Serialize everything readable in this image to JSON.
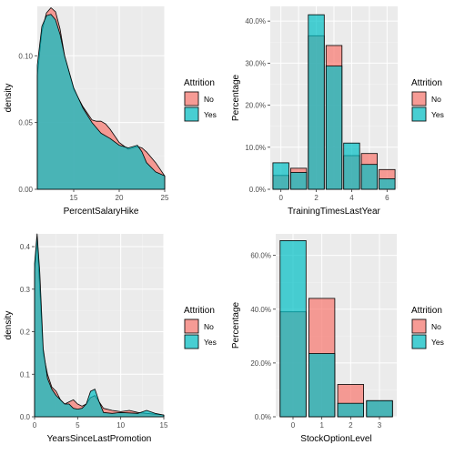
{
  "colors": {
    "no": "#F8766D",
    "yes": "#00BFC4",
    "panel": "#EBEBEB",
    "grid_major": "#FFFFFF",
    "grid_minor": "#F4F4F4"
  },
  "chart_data": [
    {
      "type": "area",
      "xlabel": "PercentSalaryHike",
      "ylabel": "density",
      "xlim": [
        11,
        25
      ],
      "ylim": [
        0,
        0.137
      ],
      "xticks": [
        15,
        20,
        25
      ],
      "xtick_labels": [
        "15",
        "20",
        "25"
      ],
      "yticks": [
        0,
        0.05,
        0.1
      ],
      "ytick_labels": [
        "0.00",
        "0.05",
        "0.10"
      ],
      "legend": {
        "title": "Attrition",
        "labels": [
          "No",
          "Yes"
        ],
        "position": "right"
      },
      "series": [
        {
          "name": "No",
          "x": [
            11,
            11.5,
            12,
            12.5,
            13,
            13.5,
            14,
            15,
            16,
            17,
            17.5,
            18,
            18.5,
            19,
            20,
            21,
            21.5,
            22,
            22.5,
            23,
            24,
            25
          ],
          "values": [
            0.085,
            0.118,
            0.132,
            0.136,
            0.133,
            0.12,
            0.1,
            0.075,
            0.062,
            0.052,
            0.051,
            0.051,
            0.049,
            0.045,
            0.035,
            0.03,
            0.031,
            0.032,
            0.031,
            0.028,
            0.02,
            0.01
          ]
        },
        {
          "name": "Yes",
          "x": [
            11,
            11.5,
            12,
            12.5,
            13,
            13.5,
            14,
            15,
            16,
            17,
            18,
            19,
            20,
            21,
            21.5,
            22,
            22.5,
            23,
            24,
            25
          ],
          "values": [
            0.093,
            0.122,
            0.13,
            0.131,
            0.127,
            0.116,
            0.1,
            0.076,
            0.061,
            0.05,
            0.042,
            0.038,
            0.033,
            0.031,
            0.032,
            0.033,
            0.028,
            0.02,
            0.013,
            0.01
          ]
        }
      ]
    },
    {
      "type": "bar",
      "xlabel": "TrainingTimesLastYear",
      "ylabel": "Percentage",
      "xlim": [
        -0.6,
        6.6
      ],
      "ylim": [
        0,
        0.435
      ],
      "categories": [
        0,
        1,
        2,
        3,
        4,
        5,
        6
      ],
      "xticks": [
        0,
        2,
        4,
        6
      ],
      "xtick_labels": [
        "0",
        "2",
        "4",
        "6"
      ],
      "yticks": [
        0,
        0.1,
        0.2,
        0.3,
        0.4
      ],
      "ytick_labels": [
        "0.0%",
        "10.0%",
        "20.0%",
        "30.0%",
        "40.0%"
      ],
      "legend": {
        "title": "Attrition",
        "labels": [
          "No",
          "Yes"
        ],
        "position": "right"
      },
      "series": [
        {
          "name": "No",
          "values": [
            0.033,
            0.05,
            0.365,
            0.342,
            0.08,
            0.085,
            0.047
          ]
        },
        {
          "name": "Yes",
          "values": [
            0.063,
            0.04,
            0.415,
            0.293,
            0.11,
            0.059,
            0.025
          ]
        }
      ]
    },
    {
      "type": "area",
      "xlabel": "YearsSinceLastPromotion",
      "ylabel": "density",
      "xlim": [
        0,
        15
      ],
      "ylim": [
        0,
        0.43
      ],
      "xticks": [
        0,
        5,
        10,
        15
      ],
      "xtick_labels": [
        "0",
        "5",
        "10",
        "15"
      ],
      "yticks": [
        0,
        0.1,
        0.2,
        0.3,
        0.4
      ],
      "ytick_labels": [
        "0.0",
        "0.1",
        "0.2",
        "0.3",
        "0.4"
      ],
      "legend": {
        "title": "Attrition",
        "labels": [
          "No",
          "Yes"
        ],
        "position": "right"
      },
      "series": [
        {
          "name": "No",
          "x": [
            0,
            0.3,
            0.6,
            1,
            1.5,
            2,
            2.5,
            3,
            3.5,
            4,
            4.5,
            5,
            5.5,
            6,
            6.5,
            7,
            7.5,
            8,
            9,
            10,
            11,
            12,
            13,
            14,
            15
          ],
          "values": [
            0.34,
            0.42,
            0.3,
            0.15,
            0.1,
            0.07,
            0.06,
            0.04,
            0.03,
            0.035,
            0.04,
            0.03,
            0.025,
            0.03,
            0.045,
            0.05,
            0.035,
            0.02,
            0.015,
            0.012,
            0.015,
            0.01,
            0.008,
            0.006,
            0.004
          ]
        },
        {
          "name": "Yes",
          "x": [
            0,
            0.3,
            0.6,
            1,
            1.5,
            2,
            2.5,
            3,
            3.5,
            4,
            4.5,
            5,
            5.5,
            6,
            6.5,
            7,
            7.5,
            8,
            9,
            10,
            11,
            12,
            13,
            14,
            15
          ],
          "values": [
            0.36,
            0.43,
            0.34,
            0.16,
            0.09,
            0.065,
            0.05,
            0.04,
            0.03,
            0.03,
            0.02,
            0.018,
            0.02,
            0.03,
            0.06,
            0.065,
            0.035,
            0.01,
            0.008,
            0.01,
            0.009,
            0.008,
            0.015,
            0.008,
            0.004
          ]
        }
      ]
    },
    {
      "type": "bar",
      "xlabel": "StockOptionLevel",
      "ylabel": "Percentage",
      "xlim": [
        -0.6,
        3.6
      ],
      "ylim": [
        0,
        0.68
      ],
      "categories": [
        0,
        1,
        2,
        3
      ],
      "xticks": [
        0,
        1,
        2,
        3
      ],
      "xtick_labels": [
        "0",
        "1",
        "2",
        "3"
      ],
      "yticks": [
        0,
        0.2,
        0.4,
        0.6
      ],
      "ytick_labels": [
        "0.0%",
        "20.0%",
        "40.0%",
        "60.0%"
      ],
      "legend": {
        "title": "Attrition",
        "labels": [
          "No",
          "Yes"
        ],
        "position": "right"
      },
      "series": [
        {
          "name": "No",
          "values": [
            0.39,
            0.44,
            0.12,
            0.06
          ]
        },
        {
          "name": "Yes",
          "values": [
            0.655,
            0.235,
            0.05,
            0.06
          ]
        }
      ]
    }
  ]
}
